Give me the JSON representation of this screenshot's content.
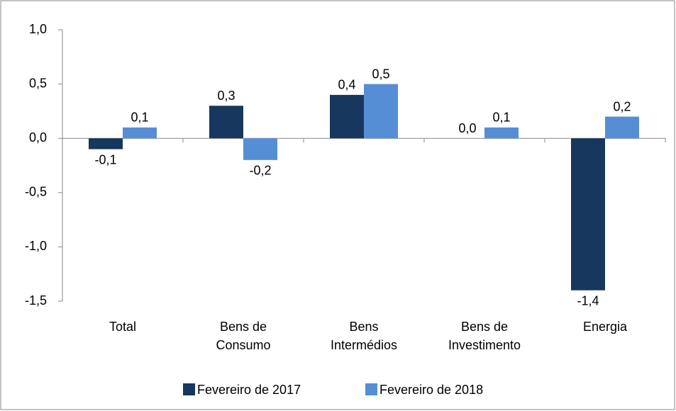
{
  "chart_data": {
    "type": "bar",
    "categories": [
      "Total",
      "Bens de Consumo",
      "Bens Intermédios",
      "Bens de Investimento",
      "Energia"
    ],
    "series": [
      {
        "name": "Fevereiro de 2017",
        "color": "#17375e",
        "values": [
          -0.1,
          0.3,
          0.4,
          0.0,
          -1.4
        ],
        "value_labels": [
          "-0,1",
          "0,3",
          "0,4",
          "0,0",
          "-1,4"
        ]
      },
      {
        "name": "Fevereiro de 2018",
        "color": "#558ed5",
        "values": [
          0.1,
          -0.2,
          0.5,
          0.1,
          0.2
        ],
        "value_labels": [
          "0,1",
          "-0,2",
          "0,5",
          "0,1",
          "0,2"
        ]
      }
    ],
    "ylim": [
      -1.5,
      1.0
    ],
    "yticks": [
      {
        "value": -1.5,
        "label": "-1,5"
      },
      {
        "value": -1.0,
        "label": "-1,0"
      },
      {
        "value": -0.5,
        "label": "-0,5"
      },
      {
        "value": 0.0,
        "label": "0,0"
      },
      {
        "value": 0.5,
        "label": "0,5"
      },
      {
        "value": 1.0,
        "label": "1,0"
      }
    ],
    "grid": false,
    "legend": "bottom"
  }
}
